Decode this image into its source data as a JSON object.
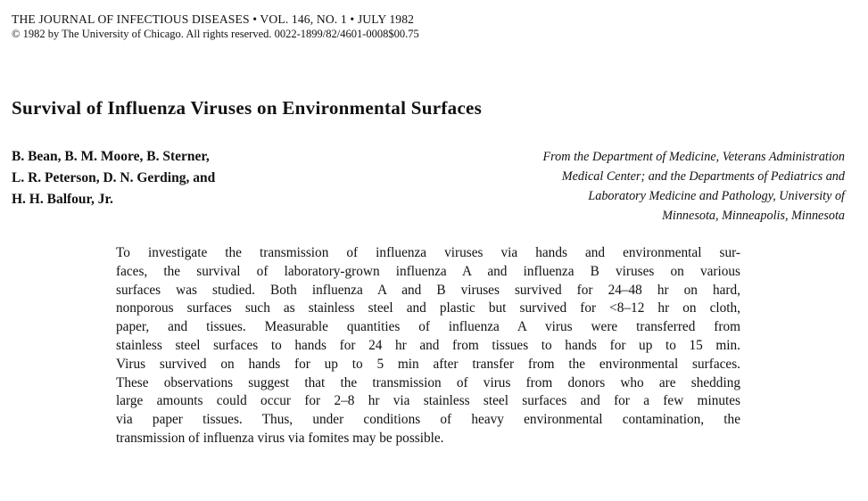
{
  "header": {
    "journal_line": "THE JOURNAL OF INFECTIOUS DISEASES • VOL. 146, NO. 1 • JULY 1982",
    "copyright_line": "© 1982 by The University of Chicago. All rights reserved. 0022-1899/82/4601-0008$00.75"
  },
  "article": {
    "title": "Survival of Influenza Viruses on Environmental Surfaces",
    "authors_lines": [
      "B. Bean, B. M. Moore, B. Sterner,",
      "L. R. Peterson, D. N. Gerding, and",
      "H. H. Balfour, Jr."
    ],
    "affiliation_lines": [
      "From the Department of Medicine, Veterans Administration",
      "Medical Center; and the Departments of Pediatrics and",
      "Laboratory Medicine and Pathology, University of",
      "Minnesota, Minneapolis, Minnesota"
    ],
    "abstract_lines": [
      "To investigate the transmission of influenza viruses via hands and environmental sur-",
      "faces, the survival of laboratory-grown influenza A and influenza B viruses on various",
      "surfaces was studied. Both influenza A and B viruses survived for 24–48 hr on hard,",
      "nonporous surfaces such as stainless steel and plastic but survived for <8–12 hr on cloth,",
      "paper, and tissues. Measurable quantities of influenza A virus were transferred from",
      "stainless steel surfaces to hands for 24 hr and from tissues to hands for up to 15 min.",
      "Virus survived on hands for up to 5 min after transfer from the environmental surfaces.",
      "These observations suggest that the transmission of virus from donors who are shedding",
      "large amounts could occur for 2–8 hr via stainless steel surfaces and for a few minutes",
      "via paper tissues. Thus, under conditions of heavy environmental contamination, the",
      "transmission of influenza virus via fomites may be possible."
    ]
  }
}
